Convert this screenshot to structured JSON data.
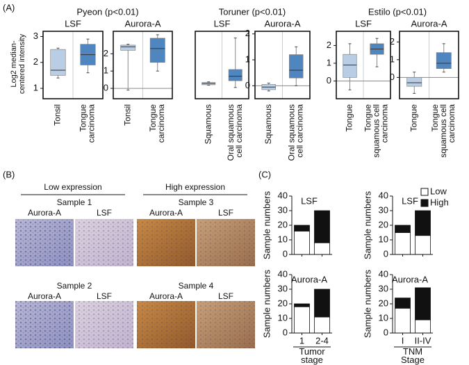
{
  "panels": {
    "a": "(A)",
    "b": "(B)",
    "c": "(C)"
  },
  "panel_a": {
    "y_label": "Log2 median-centered intensity",
    "groups": [
      "Pyeon (p<0.01)",
      "Toruner (p<0.01)",
      "Estilo (p<0.01)"
    ]
  },
  "panel_b": {
    "headers": [
      "Low expression",
      "High expression"
    ],
    "samples": [
      {
        "title": "Sample 1",
        "images": [
          "Aurora-A",
          "LSF"
        ]
      },
      {
        "title": "Sample 2",
        "images": [
          "Aurora-A",
          "LSF"
        ]
      },
      {
        "title": "Sample 3",
        "images": [
          "Aurora-A",
          "LSF"
        ]
      },
      {
        "title": "Sample 4",
        "images": [
          "Aurora-A",
          "LSF"
        ]
      }
    ]
  },
  "chart_data": [
    {
      "type": "box",
      "title": "LSF",
      "categories": [
        "Tonsil",
        "Tongue carcinoma"
      ],
      "colors": [
        "#b9cde4",
        "#4f86c0"
      ],
      "boxes": [
        {
          "low": 1.4,
          "q1": 1.5,
          "median": 1.7,
          "q3": 2.5,
          "high": 2.55
        },
        {
          "low": 1.6,
          "q1": 1.9,
          "median": 2.3,
          "q3": 2.7,
          "high": 2.9
        }
      ],
      "ylim": [
        0.6,
        3.2
      ],
      "yticks": [
        1,
        2,
        3
      ]
    },
    {
      "type": "box",
      "title": "Aurora-A",
      "categories": [
        "Tonsil",
        "Tongue carcinoma"
      ],
      "colors": [
        "#b9cde4",
        "#4f86c0"
      ],
      "boxes": [
        {
          "low": -0.1,
          "q1": 2.2,
          "median": 2.4,
          "q3": 2.5,
          "high": 2.55
        },
        {
          "low": 1.0,
          "q1": 1.5,
          "median": 2.3,
          "q3": 2.9,
          "high": 3.1
        }
      ],
      "ylim": [
        -0.6,
        3.3
      ],
      "yticks": [
        0,
        1,
        2
      ],
      "baseline": 0
    },
    {
      "type": "box",
      "title": "LSF",
      "categories": [
        "Squamous",
        "Oral squamous cell carcinoma"
      ],
      "colors": [
        "#b9cde4",
        "#4f86c0"
      ],
      "boxes": [
        {
          "low": 0.6,
          "q1": 0.62,
          "median": 0.68,
          "q3": 0.72,
          "high": 0.75
        },
        {
          "low": 0.5,
          "q1": 0.8,
          "median": 1.0,
          "q3": 1.3,
          "high": 2.7
        }
      ],
      "ylim": [
        0,
        3
      ]
    },
    {
      "type": "box",
      "title": "Aurora-A",
      "categories": [
        "Squamous",
        "Oral squamous cell carcinoma"
      ],
      "colors": [
        "#b9cde4",
        "#4f86c0"
      ],
      "boxes": [
        {
          "low": -0.2,
          "q1": -0.15,
          "median": -0.05,
          "q3": 0.05,
          "high": 0.1
        },
        {
          "low": 0.0,
          "q1": 0.3,
          "median": 0.6,
          "q3": 1.2,
          "high": 1.5
        }
      ],
      "ylim": [
        -0.5,
        2.1
      ],
      "yticks": [
        0,
        1,
        2
      ],
      "baseline": 0
    },
    {
      "type": "box",
      "title": "LSF",
      "categories": [
        "Tongue",
        "Tongue squamous cell carcinoma"
      ],
      "colors": [
        "#b9cde4",
        "#4f86c0"
      ],
      "boxes": [
        {
          "low": -0.5,
          "q1": 0.2,
          "median": 0.9,
          "q3": 1.5,
          "high": 2.1
        },
        {
          "low": 0.8,
          "q1": 1.5,
          "median": 1.8,
          "q3": 2.1,
          "high": 2.4
        }
      ],
      "ylim": [
        -1,
        2.8
      ],
      "yticks": [
        0,
        1,
        2
      ],
      "baseline": 0
    },
    {
      "type": "box",
      "title": "Aurora-A",
      "categories": [
        "Tongue",
        "Tongue squamous cell carcinoma"
      ],
      "colors": [
        "#b9cde4",
        "#4f86c0"
      ],
      "boxes": [
        {
          "low": -0.9,
          "q1": -0.5,
          "median": -0.3,
          "q3": 0.0,
          "high": 0.3
        },
        {
          "low": 0.3,
          "q1": 0.5,
          "median": 0.8,
          "q3": 1.4,
          "high": 1.9
        }
      ],
      "ylim": [
        -1.2,
        2.6
      ],
      "yticks": [
        0,
        1,
        2
      ],
      "baseline": 0
    },
    {
      "type": "stacked_bar",
      "title": "LSF",
      "ylabel": "Sample numbers",
      "series": [
        {
          "color": "#ffffff",
          "values": [
            16,
            8
          ]
        },
        {
          "color": "#111111",
          "values": [
            4,
            22
          ]
        }
      ],
      "ylim": [
        0,
        40
      ],
      "yticks": [
        0,
        10,
        20,
        30,
        40
      ]
    },
    {
      "type": "stacked_bar",
      "title": "Aurora-A",
      "ylabel": "Sample numbers",
      "categories": [
        "1",
        "2-4"
      ],
      "xlabel": "Tumor stage",
      "series": [
        {
          "color": "#ffffff",
          "values": [
            18,
            11
          ]
        },
        {
          "color": "#111111",
          "values": [
            2,
            19
          ]
        }
      ],
      "ylim": [
        0,
        40
      ],
      "yticks": [
        0,
        10,
        20,
        30,
        40
      ]
    },
    {
      "type": "stacked_bar",
      "title": "LSF",
      "ylabel": "Sample numbers",
      "legend": "right",
      "series": [
        {
          "name": "Low",
          "color": "#ffffff",
          "values": [
            15,
            13
          ]
        },
        {
          "name": "High",
          "color": "#111111",
          "values": [
            5,
            17
          ]
        }
      ],
      "ylim": [
        0,
        40
      ],
      "yticks": [
        0,
        10,
        20,
        30,
        40
      ]
    },
    {
      "type": "stacked_bar",
      "title": "Aurora-A",
      "ylabel": "Sample numbers",
      "categories": [
        "I",
        "II-IV"
      ],
      "xlabel": "TNM Stage",
      "series": [
        {
          "color": "#ffffff",
          "values": [
            17,
            9
          ]
        },
        {
          "color": "#111111",
          "values": [
            7,
            22
          ]
        }
      ],
      "ylim": [
        0,
        40
      ],
      "yticks": [
        0,
        10,
        20,
        30,
        40
      ]
    }
  ]
}
